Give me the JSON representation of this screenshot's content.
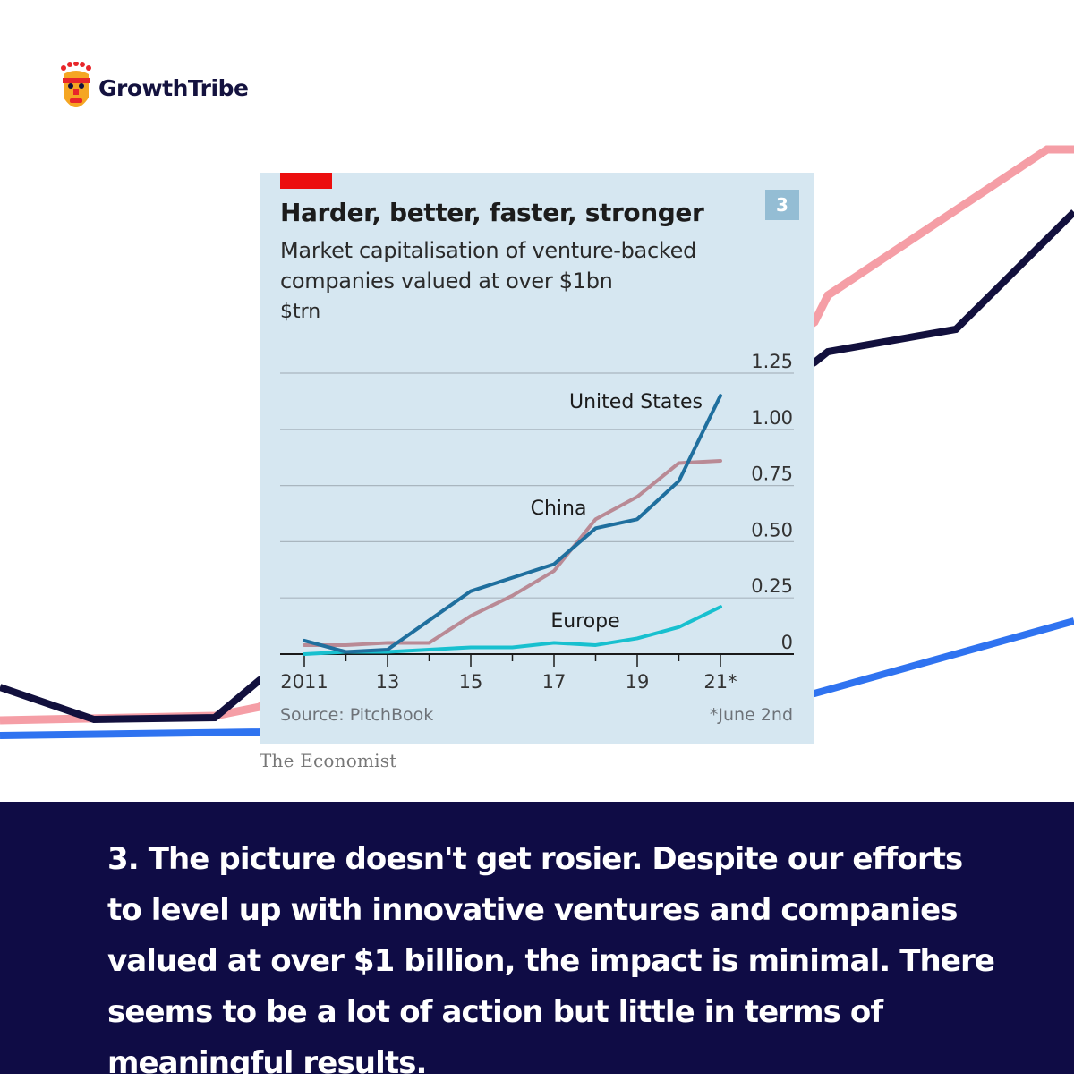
{
  "brand": {
    "name": "GrowthTribe"
  },
  "card": {
    "badge": "3",
    "source": "Source: PitchBook",
    "footnote": "*June 2nd"
  },
  "credit": "The Economist",
  "caption": "3. The picture doesn't get rosier. Despite our efforts to level up with innovative ventures and companies valued at over $1 billion, the impact is minimal. There seems to be a lot of action but little in terms of meaningful results.",
  "colors": {
    "background": "#ffffff",
    "footer": "#0f0c45",
    "card": "#d6e7f1",
    "accent_red": "#ec0e0e",
    "us": "#1f6f9e",
    "china": "#b98a95",
    "europe": "#18c0cf",
    "bg_pink": "#f59ea6",
    "bg_navy": "#12103d",
    "bg_blue": "#2f73f0"
  },
  "chart_data": {
    "type": "line",
    "title": "Harder, better, faster, stronger",
    "subtitle": "Market capitalisation of venture-backed companies valued at over $1bn",
    "ylabel": "$trn",
    "ylim": [
      0,
      1.25
    ],
    "y_ticks": [
      "0",
      "0.25",
      "0.50",
      "0.75",
      "1.00",
      "1.25"
    ],
    "x_tick_labels": [
      "2011",
      "13",
      "15",
      "17",
      "19",
      "21*"
    ],
    "x": [
      2011,
      2012,
      2013,
      2014,
      2015,
      2016,
      2017,
      2018,
      2019,
      2020,
      2021
    ],
    "series": [
      {
        "name": "United States",
        "values": [
          0.06,
          0.01,
          0.02,
          0.15,
          0.28,
          0.34,
          0.4,
          0.56,
          0.6,
          0.77,
          1.15
        ]
      },
      {
        "name": "China",
        "values": [
          0.04,
          0.04,
          0.05,
          0.05,
          0.17,
          0.26,
          0.37,
          0.6,
          0.7,
          0.85,
          0.86
        ]
      },
      {
        "name": "Europe",
        "values": [
          0.0,
          0.01,
          0.01,
          0.02,
          0.03,
          0.03,
          0.05,
          0.04,
          0.07,
          0.12,
          0.21
        ]
      }
    ],
    "series_labels": [
      "United States",
      "China",
      "Europe"
    ],
    "grid": true
  }
}
